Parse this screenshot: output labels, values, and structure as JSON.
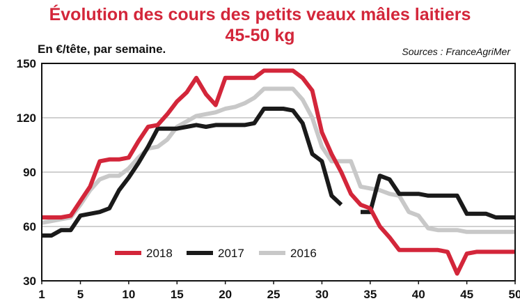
{
  "chart_data": {
    "type": "line",
    "title_line1": "Évolution des cours des petits veaux mâles laitiers",
    "title_line2": "45-50 kg",
    "unit_label": "En €/tête, par semaine.",
    "source": "Sources : FranceAgriMer",
    "x_ticks": [
      1,
      5,
      10,
      15,
      20,
      25,
      30,
      35,
      40,
      45,
      50
    ],
    "y_ticks": [
      30,
      60,
      90,
      120,
      150
    ],
    "xlim": [
      1,
      50
    ],
    "ylim": [
      30,
      150
    ],
    "grid": "horizontal",
    "legend_position": "bottom-center",
    "x": [
      1,
      2,
      3,
      4,
      5,
      6,
      7,
      8,
      9,
      10,
      11,
      12,
      13,
      14,
      15,
      16,
      17,
      18,
      19,
      20,
      21,
      22,
      23,
      24,
      25,
      26,
      27,
      28,
      29,
      30,
      31,
      32,
      33,
      34,
      35,
      36,
      37,
      38,
      39,
      40,
      41,
      42,
      43,
      44,
      45,
      46,
      47,
      48,
      49,
      50
    ],
    "series": [
      {
        "name": "2018",
        "color": "#d3263a",
        "values": [
          65,
          65,
          65,
          66,
          74,
          82,
          96,
          97,
          97,
          98,
          107,
          115,
          116,
          122,
          129,
          134,
          142,
          133,
          127,
          142,
          142,
          142,
          142,
          146,
          146,
          146,
          146,
          142,
          135,
          112,
          100,
          90,
          78,
          72,
          70,
          60,
          54,
          47,
          47,
          47,
          47,
          47,
          46,
          34,
          45,
          46,
          46,
          46,
          46,
          46
        ]
      },
      {
        "name": "2017",
        "color": "#1a1a1a",
        "values": [
          55,
          55,
          58,
          58,
          66,
          67,
          68,
          70,
          80,
          87,
          95,
          104,
          114,
          114,
          114,
          115,
          116,
          115,
          116,
          116,
          116,
          116,
          117,
          125,
          125,
          125,
          124,
          117,
          100,
          96,
          77,
          72,
          null,
          68,
          68,
          88,
          86,
          78,
          78,
          78,
          77,
          77,
          77,
          77,
          67,
          67,
          67,
          65,
          65,
          65
        ]
      },
      {
        "name": "2016",
        "color": "#c8c8c8",
        "values": [
          62,
          63,
          64,
          65,
          72,
          80,
          86,
          88,
          88,
          92,
          98,
          103,
          104,
          108,
          115,
          118,
          121,
          122,
          123,
          125,
          126,
          128,
          131,
          136,
          136,
          136,
          136,
          130,
          120,
          104,
          96,
          96,
          96,
          82,
          81,
          80,
          78,
          77,
          68,
          66,
          59,
          58,
          58,
          58,
          57,
          57,
          57,
          57,
          57,
          57
        ]
      }
    ]
  }
}
